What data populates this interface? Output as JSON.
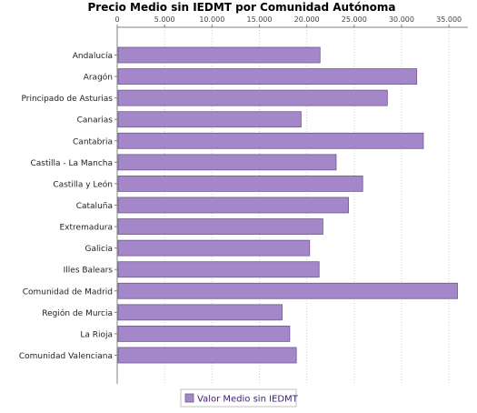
{
  "chart_data": {
    "type": "bar",
    "orientation": "horizontal",
    "title": "Precio Medio sin IEDMT por Comunidad Autónoma",
    "xlabel": "",
    "ylabel": "",
    "xlim": [
      0,
      37000
    ],
    "x_ticks": [
      0,
      5000,
      10000,
      15000,
      20000,
      25000,
      30000,
      35000
    ],
    "x_tick_labels": [
      "0",
      "5.000",
      "10.000",
      "15.000",
      "20.000",
      "25.000",
      "30.000",
      "35.000"
    ],
    "axis_position": "top",
    "grid": true,
    "categories": [
      "Andalucía",
      "Aragón",
      "Principado de Asturias",
      "Canarias",
      "Cantabria",
      "Castilla - La Mancha",
      "Castilla y León",
      "Cataluña",
      "Extremadura",
      "Galicia",
      "Illes Balears",
      "Comunidad de Madrid",
      "Región de Murcia",
      "La Rioja",
      "Comunidad Valenciana"
    ],
    "series": [
      {
        "name": "Valor Medio sin IEDMT",
        "color": "#a487c8",
        "values": [
          21400,
          31600,
          28500,
          19400,
          32300,
          23100,
          25900,
          24400,
          21700,
          20300,
          21300,
          35900,
          17400,
          18200,
          18900
        ]
      }
    ],
    "legend": {
      "position": "bottom",
      "entries": [
        "Valor Medio sin IEDMT"
      ]
    }
  }
}
